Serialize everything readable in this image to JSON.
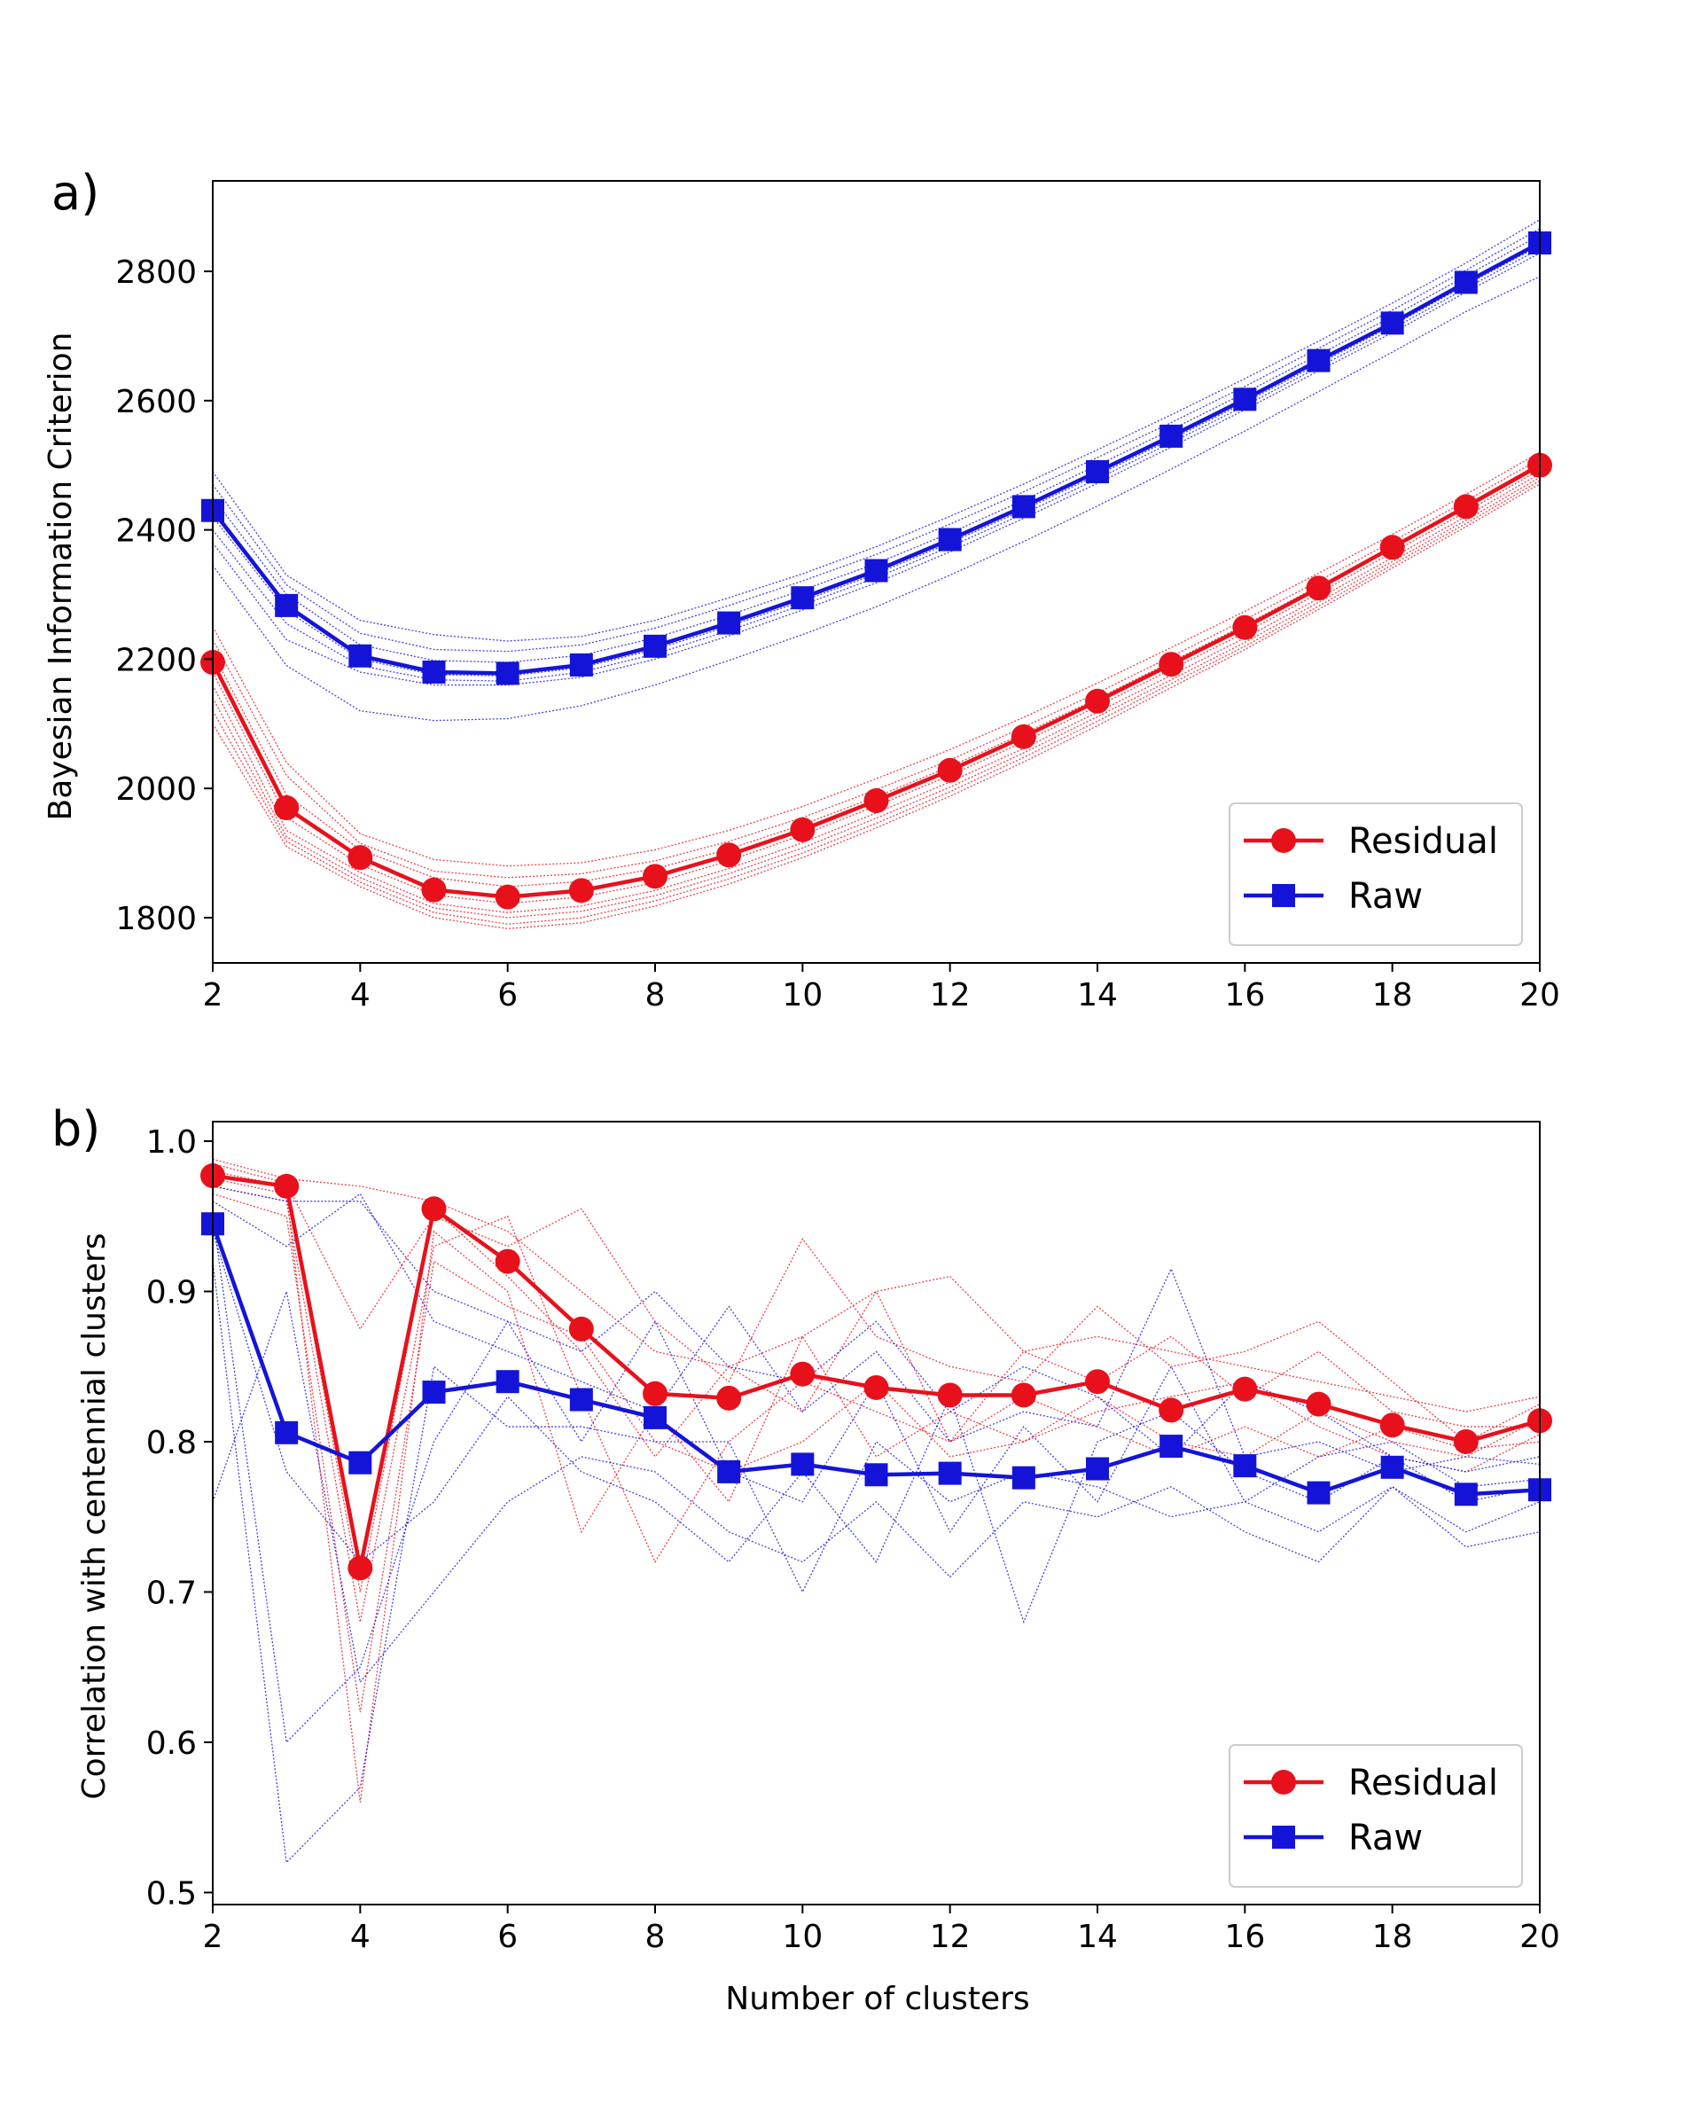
{
  "chart_data": [
    {
      "panel_label": "a)",
      "type": "line",
      "title": "",
      "xlabel": "",
      "ylabel": "Bayesian Information Criterion",
      "xlim": [
        2,
        20
      ],
      "ylim": [
        1730,
        2940
      ],
      "xticks": [
        2,
        4,
        6,
        8,
        10,
        12,
        14,
        16,
        18,
        20
      ],
      "yticks": [
        1800,
        2000,
        2200,
        2400,
        2600,
        2800
      ],
      "x": [
        2,
        3,
        4,
        5,
        6,
        7,
        8,
        9,
        10,
        11,
        12,
        13,
        14,
        15,
        16,
        17,
        18,
        19,
        20
      ],
      "legend_position": "lower-right",
      "series": [
        {
          "name": "Residual",
          "color": "#e8111b",
          "marker": "circle",
          "values": [
            2195,
            1970,
            1893,
            1843,
            1832,
            1842,
            1864,
            1897,
            1936,
            1981,
            2028,
            2080,
            2135,
            2192,
            2249,
            2310,
            2373,
            2436,
            2500
          ]
        },
        {
          "name": "Raw",
          "color": "#1414d9",
          "marker": "square",
          "values": [
            2430,
            2283,
            2205,
            2180,
            2178,
            2191,
            2220,
            2256,
            2295,
            2337,
            2385,
            2436,
            2490,
            2545,
            2602,
            2662,
            2720,
            2783,
            2844
          ]
        }
      ],
      "ensemble": [
        {
          "color": "#e8111b",
          "members": [
            [
              2250,
              2040,
              1930,
              1890,
              1880,
              1885,
              1905,
              1935,
              1972,
              2015,
              2060,
              2110,
              2163,
              2218,
              2274,
              2333,
              2393,
              2455,
              2520
            ],
            [
              2230,
              2020,
              1915,
              1872,
              1862,
              1868,
              1888,
              1918,
              1955,
              1998,
              2044,
              2095,
              2148,
              2204,
              2261,
              2321,
              2382,
              2445,
              2510
            ],
            [
              2210,
              1990,
              1905,
              1862,
              1848,
              1856,
              1876,
              1906,
              1944,
              1987,
              2034,
              2085,
              2139,
              2196,
              2253,
              2313,
              2375,
              2438,
              2503
            ],
            [
              2180,
              1955,
              1882,
              1835,
              1822,
              1832,
              1854,
              1888,
              1928,
              1973,
              2020,
              2072,
              2127,
              2184,
              2241,
              2302,
              2365,
              2428,
              2493
            ],
            [
              2160,
              1935,
              1870,
              1822,
              1808,
              1818,
              1842,
              1876,
              1916,
              1962,
              2010,
              2062,
              2118,
              2175,
              2233,
              2294,
              2357,
              2421,
              2487
            ],
            [
              2140,
              1925,
              1862,
              1815,
              1800,
              1810,
              1834,
              1868,
              1908,
              1954,
              2002,
              2055,
              2111,
              2168,
              2226,
              2288,
              2351,
              2415,
              2481
            ],
            [
              2120,
              1918,
              1855,
              1808,
              1790,
              1800,
              1826,
              1860,
              1900,
              1946,
              1995,
              2048,
              2104,
              2162,
              2220,
              2282,
              2346,
              2410,
              2476
            ],
            [
              2100,
              1910,
              1848,
              1800,
              1783,
              1792,
              1818,
              1852,
              1893,
              1939,
              1988,
              2041,
              2097,
              2156,
              2215,
              2277,
              2341,
              2405,
              2471
            ]
          ]
        },
        {
          "color": "#1414d9",
          "members": [
            [
              2490,
              2330,
              2260,
              2238,
              2228,
              2235,
              2260,
              2295,
              2332,
              2374,
              2421,
              2471,
              2524,
              2578,
              2634,
              2692,
              2751,
              2813,
              2880
            ],
            [
              2470,
              2315,
              2240,
              2215,
              2212,
              2222,
              2248,
              2283,
              2321,
              2362,
              2409,
              2459,
              2512,
              2566,
              2622,
              2681,
              2740,
              2802,
              2866
            ],
            [
              2450,
              2300,
              2222,
              2198,
              2195,
              2206,
              2233,
              2268,
              2307,
              2348,
              2395,
              2446,
              2500,
              2555,
              2612,
              2671,
              2730,
              2793,
              2856
            ],
            [
              2420,
              2275,
              2200,
              2176,
              2174,
              2187,
              2215,
              2251,
              2290,
              2332,
              2380,
              2431,
              2485,
              2540,
              2597,
              2657,
              2716,
              2779,
              2840
            ],
            [
              2400,
              2255,
              2190,
              2168,
              2166,
              2180,
              2208,
              2244,
              2284,
              2326,
              2374,
              2425,
              2479,
              2535,
              2592,
              2652,
              2711,
              2774,
              2835
            ],
            [
              2380,
              2230,
              2180,
              2160,
              2160,
              2172,
              2200,
              2236,
              2276,
              2318,
              2366,
              2418,
              2472,
              2528,
              2586,
              2646,
              2705,
              2768,
              2828
            ],
            [
              2345,
              2190,
              2120,
              2105,
              2108,
              2128,
              2160,
              2198,
              2238,
              2281,
              2330,
              2382,
              2437,
              2494,
              2553,
              2614,
              2675,
              2738,
              2792
            ]
          ]
        }
      ]
    },
    {
      "panel_label": "b)",
      "type": "line",
      "title": "",
      "xlabel": "Number of clusters",
      "ylabel": "Correlation with centennial clusters",
      "xlim": [
        2,
        20
      ],
      "ylim": [
        0.492,
        1.013
      ],
      "xticks": [
        2,
        4,
        6,
        8,
        10,
        12,
        14,
        16,
        18,
        20
      ],
      "yticks": [
        0.5,
        0.6,
        0.7,
        0.8,
        0.9,
        1.0
      ],
      "ytick_labels": [
        "0.5",
        "0.6",
        "0.7",
        "0.8",
        "0.9",
        "1.0"
      ],
      "x": [
        2,
        3,
        4,
        5,
        6,
        7,
        8,
        9,
        10,
        11,
        12,
        13,
        14,
        15,
        16,
        17,
        18,
        19,
        20
      ],
      "legend_position": "lower-right",
      "series": [
        {
          "name": "Residual",
          "color": "#e8111b",
          "marker": "circle",
          "values": [
            0.977,
            0.97,
            0.716,
            0.955,
            0.92,
            0.875,
            0.832,
            0.829,
            0.845,
            0.836,
            0.831,
            0.831,
            0.84,
            0.821,
            0.835,
            0.825,
            0.811,
            0.8,
            0.814
          ]
        },
        {
          "name": "Raw",
          "color": "#1414d9",
          "marker": "square",
          "values": [
            0.945,
            0.806,
            0.786,
            0.833,
            0.84,
            0.828,
            0.816,
            0.78,
            0.785,
            0.778,
            0.779,
            0.776,
            0.782,
            0.797,
            0.784,
            0.766,
            0.783,
            0.765,
            0.768
          ]
        }
      ],
      "ensemble": [
        {
          "color": "#e8111b",
          "members": [
            [
              0.988,
              0.975,
              0.97,
              0.96,
              0.94,
              0.9,
              0.86,
              0.85,
              0.87,
              0.9,
              0.91,
              0.86,
              0.87,
              0.86,
              0.85,
              0.84,
              0.83,
              0.82,
              0.83
            ],
            [
              0.985,
              0.972,
              0.875,
              0.95,
              0.93,
              0.955,
              0.88,
              0.84,
              0.935,
              0.87,
              0.85,
              0.84,
              0.89,
              0.85,
              0.86,
              0.88,
              0.84,
              0.8,
              0.825
            ],
            [
              0.98,
              0.97,
              0.7,
              0.955,
              0.91,
              0.86,
              0.79,
              0.85,
              0.82,
              0.9,
              0.8,
              0.86,
              0.84,
              0.87,
              0.83,
              0.86,
              0.82,
              0.81,
              0.81
            ],
            [
              0.975,
              0.965,
              0.56,
              0.94,
              0.9,
              0.74,
              0.82,
              0.76,
              0.87,
              0.79,
              0.82,
              0.8,
              0.83,
              0.8,
              0.79,
              0.82,
              0.8,
              0.79,
              0.815
            ],
            [
              0.97,
              0.96,
              0.68,
              0.93,
              0.95,
              0.83,
              0.72,
              0.8,
              0.84,
              0.82,
              0.8,
              0.83,
              0.81,
              0.79,
              0.81,
              0.79,
              0.81,
              0.795,
              0.8
            ],
            [
              0.965,
              0.95,
              0.62,
              0.92,
              0.89,
              0.87,
              0.8,
              0.78,
              0.8,
              0.84,
              0.79,
              0.8,
              0.82,
              0.83,
              0.84,
              0.81,
              0.79,
              0.78,
              0.805
            ]
          ]
        },
        {
          "color": "#1414d9",
          "members": [
            [
              0.97,
              0.96,
              0.96,
              0.9,
              0.88,
              0.86,
              0.9,
              0.85,
              0.84,
              0.88,
              0.82,
              0.85,
              0.83,
              0.79,
              0.84,
              0.82,
              0.79,
              0.78,
              0.79
            ],
            [
              0.96,
              0.93,
              0.965,
              0.88,
              0.86,
              0.84,
              0.82,
              0.89,
              0.82,
              0.86,
              0.8,
              0.82,
              0.81,
              0.915,
              0.79,
              0.8,
              0.78,
              0.79,
              0.785
            ],
            [
              0.95,
              0.6,
              0.65,
              0.8,
              0.88,
              0.8,
              0.88,
              0.78,
              0.76,
              0.84,
              0.74,
              0.81,
              0.76,
              0.85,
              0.76,
              0.79,
              0.8,
              0.77,
              0.775
            ],
            [
              0.94,
              0.78,
              0.72,
              0.76,
              0.83,
              0.78,
              0.76,
              0.72,
              0.78,
              0.72,
              0.83,
              0.68,
              0.8,
              0.82,
              0.78,
              0.76,
              0.79,
              0.76,
              0.77
            ],
            [
              0.92,
              0.52,
              0.57,
              0.85,
              0.81,
              0.81,
              0.8,
              0.8,
              0.7,
              0.8,
              0.76,
              0.78,
              0.77,
              0.75,
              0.76,
              0.74,
              0.77,
              0.74,
              0.76
            ],
            [
              0.76,
              0.9,
              0.64,
              0.7,
              0.76,
              0.79,
              0.78,
              0.74,
              0.72,
              0.76,
              0.71,
              0.76,
              0.75,
              0.77,
              0.74,
              0.72,
              0.77,
              0.73,
              0.74
            ]
          ]
        }
      ]
    }
  ]
}
